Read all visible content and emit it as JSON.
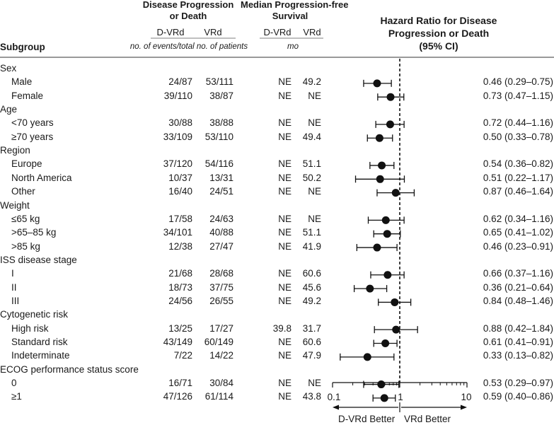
{
  "headers": {
    "subgroup": "Subgroup",
    "events_title_line1": "Disease Progression",
    "events_title_line2": "or Death",
    "pfs_title_line1": "Median Progression-free",
    "pfs_title_line2": "Survival",
    "hr_title_line1": "Hazard Ratio for Disease",
    "hr_title_line2": "Progression or Death",
    "hr_title_line3": "(95% CI)",
    "col_dvrd": "D-VRd",
    "col_vrd": "VRd",
    "col_pfs_dvrd": "D-VRd",
    "col_pfs_vrd": "VRd",
    "events_unit": "no. of events/total no. of patients",
    "pfs_unit": "mo"
  },
  "rows": [
    {
      "type": "group",
      "label": "Sex"
    },
    {
      "type": "item",
      "label": "Male",
      "dvrd": "24/87",
      "vrd": "53/111",
      "pfs_dvrd": "NE",
      "pfs_vrd": "49.2",
      "hr_text": "0.46 (0.29–0.75)"
    },
    {
      "type": "item",
      "label": "Female",
      "dvrd": "39/110",
      "vrd": "38/87",
      "pfs_dvrd": "NE",
      "pfs_vrd": "NE",
      "hr_text": "0.73 (0.47–1.15)"
    },
    {
      "type": "group",
      "label": "Age"
    },
    {
      "type": "item",
      "label": "<70 years",
      "dvrd": "30/88",
      "vrd": "38/88",
      "pfs_dvrd": "NE",
      "pfs_vrd": "NE",
      "hr_text": "0.72 (0.44–1.16)"
    },
    {
      "type": "item",
      "label": "≥70 years",
      "dvrd": "33/109",
      "vrd": "53/110",
      "pfs_dvrd": "NE",
      "pfs_vrd": "49.4",
      "hr_text": "0.50 (0.33–0.78)"
    },
    {
      "type": "group",
      "label": "Region"
    },
    {
      "type": "item",
      "label": "Europe",
      "dvrd": "37/120",
      "vrd": "54/116",
      "pfs_dvrd": "NE",
      "pfs_vrd": "51.1",
      "hr_text": "0.54 (0.36–0.82)"
    },
    {
      "type": "item",
      "label": "North America",
      "dvrd": "10/37",
      "vrd": "13/31",
      "pfs_dvrd": "NE",
      "pfs_vrd": "50.2",
      "hr_text": "0.51 (0.22–1.17)"
    },
    {
      "type": "item",
      "label": "Other",
      "dvrd": "16/40",
      "vrd": "24/51",
      "pfs_dvrd": "NE",
      "pfs_vrd": "NE",
      "hr_text": "0.87 (0.46–1.64)"
    },
    {
      "type": "group",
      "label": "Weight"
    },
    {
      "type": "item",
      "label": "≤65 kg",
      "dvrd": "17/58",
      "vrd": "24/63",
      "pfs_dvrd": "NE",
      "pfs_vrd": "NE",
      "hr_text": "0.62 (0.34–1.16)"
    },
    {
      "type": "item",
      "label": ">65–85 kg",
      "dvrd": "34/101",
      "vrd": "40/88",
      "pfs_dvrd": "NE",
      "pfs_vrd": "51.1",
      "hr_text": "0.65 (0.41–1.02)"
    },
    {
      "type": "item",
      "label": ">85 kg",
      "dvrd": "12/38",
      "vrd": "27/47",
      "pfs_dvrd": "NE",
      "pfs_vrd": "41.9",
      "hr_text": "0.46 (0.23–0.91)"
    },
    {
      "type": "group",
      "label": "ISS disease stage"
    },
    {
      "type": "item",
      "label": "I",
      "dvrd": "21/68",
      "vrd": "28/68",
      "pfs_dvrd": "NE",
      "pfs_vrd": "60.6",
      "hr_text": "0.66 (0.37–1.16)"
    },
    {
      "type": "item",
      "label": "II",
      "dvrd": "18/73",
      "vrd": "37/75",
      "pfs_dvrd": "NE",
      "pfs_vrd": "45.6",
      "hr_text": "0.36 (0.21–0.64)"
    },
    {
      "type": "item",
      "label": "III",
      "dvrd": "24/56",
      "vrd": "26/55",
      "pfs_dvrd": "NE",
      "pfs_vrd": "49.2",
      "hr_text": "0.84 (0.48–1.46)"
    },
    {
      "type": "group",
      "label": "Cytogenetic risk"
    },
    {
      "type": "item",
      "label": "High risk",
      "dvrd": "13/25",
      "vrd": "17/27",
      "pfs_dvrd": "39.8",
      "pfs_vrd": "31.7",
      "hr_text": "0.88 (0.42–1.84)"
    },
    {
      "type": "item",
      "label": "Standard risk",
      "dvrd": "43/149",
      "vrd": "60/149",
      "pfs_dvrd": "NE",
      "pfs_vrd": "60.6",
      "hr_text": "0.61 (0.41–0.91)"
    },
    {
      "type": "item",
      "label": "Indeterminate",
      "dvrd": "7/22",
      "vrd": "14/22",
      "pfs_dvrd": "NE",
      "pfs_vrd": "47.9",
      "hr_text": "0.33 (0.13–0.82)"
    },
    {
      "type": "group",
      "label": "ECOG performance status score"
    },
    {
      "type": "item",
      "label": "0",
      "dvrd": "16/71",
      "vrd": "30/84",
      "pfs_dvrd": "NE",
      "pfs_vrd": "NE",
      "hr_text": "0.53 (0.29–0.97)"
    },
    {
      "type": "item",
      "label": "≥1",
      "dvrd": "47/126",
      "vrd": "61/114",
      "pfs_dvrd": "NE",
      "pfs_vrd": "43.8",
      "hr_text": "0.59 (0.40–0.86)"
    }
  ],
  "chart_data": {
    "type": "forest",
    "title": "Hazard Ratio for Disease Progression or Death (95% CI)",
    "xscale": "log",
    "xlim": [
      0.1,
      10
    ],
    "reference_line": 1,
    "ticks": [
      0.1,
      1,
      10
    ],
    "tick_labels": [
      "0.1",
      "1",
      "10"
    ],
    "left_annotation": "D-VRd Better",
    "right_annotation": "VRd Better",
    "points": [
      {
        "subgroup": "Male",
        "hr": 0.46,
        "lo": 0.29,
        "hi": 0.75
      },
      {
        "subgroup": "Female",
        "hr": 0.73,
        "lo": 0.47,
        "hi": 1.15
      },
      {
        "subgroup": "<70 years",
        "hr": 0.72,
        "lo": 0.44,
        "hi": 1.16
      },
      {
        "subgroup": "≥70 years",
        "hr": 0.5,
        "lo": 0.33,
        "hi": 0.78
      },
      {
        "subgroup": "Europe",
        "hr": 0.54,
        "lo": 0.36,
        "hi": 0.82
      },
      {
        "subgroup": "North America",
        "hr": 0.51,
        "lo": 0.22,
        "hi": 1.17
      },
      {
        "subgroup": "Other",
        "hr": 0.87,
        "lo": 0.46,
        "hi": 1.64
      },
      {
        "subgroup": "≤65 kg",
        "hr": 0.62,
        "lo": 0.34,
        "hi": 1.16
      },
      {
        "subgroup": ">65–85 kg",
        "hr": 0.65,
        "lo": 0.41,
        "hi": 1.02
      },
      {
        "subgroup": ">85 kg",
        "hr": 0.46,
        "lo": 0.23,
        "hi": 0.91
      },
      {
        "subgroup": "I",
        "hr": 0.66,
        "lo": 0.37,
        "hi": 1.16
      },
      {
        "subgroup": "II",
        "hr": 0.36,
        "lo": 0.21,
        "hi": 0.64
      },
      {
        "subgroup": "III",
        "hr": 0.84,
        "lo": 0.48,
        "hi": 1.46
      },
      {
        "subgroup": "High risk",
        "hr": 0.88,
        "lo": 0.42,
        "hi": 1.84
      },
      {
        "subgroup": "Standard risk",
        "hr": 0.61,
        "lo": 0.41,
        "hi": 0.91
      },
      {
        "subgroup": "Indeterminate",
        "hr": 0.33,
        "lo": 0.13,
        "hi": 0.82
      },
      {
        "subgroup": "0",
        "hr": 0.53,
        "lo": 0.29,
        "hi": 0.97
      },
      {
        "subgroup": "≥1",
        "hr": 0.59,
        "lo": 0.4,
        "hi": 0.86
      }
    ]
  }
}
